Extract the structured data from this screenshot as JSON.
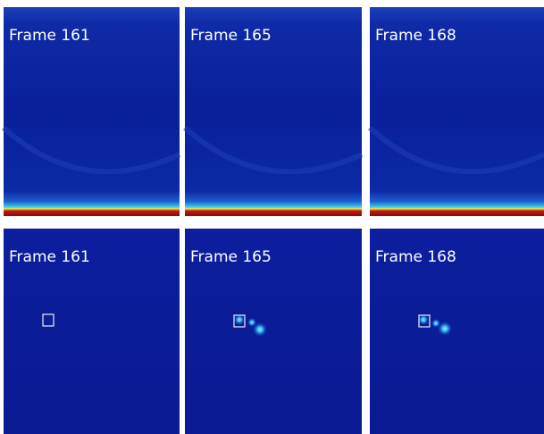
{
  "panels": [
    {
      "label": "Frame 161"
    },
    {
      "label": "Frame 165"
    },
    {
      "label": "Frame 168"
    },
    {
      "label": "Frame 161"
    },
    {
      "label": "Frame 165"
    },
    {
      "label": "Frame 168"
    }
  ]
}
